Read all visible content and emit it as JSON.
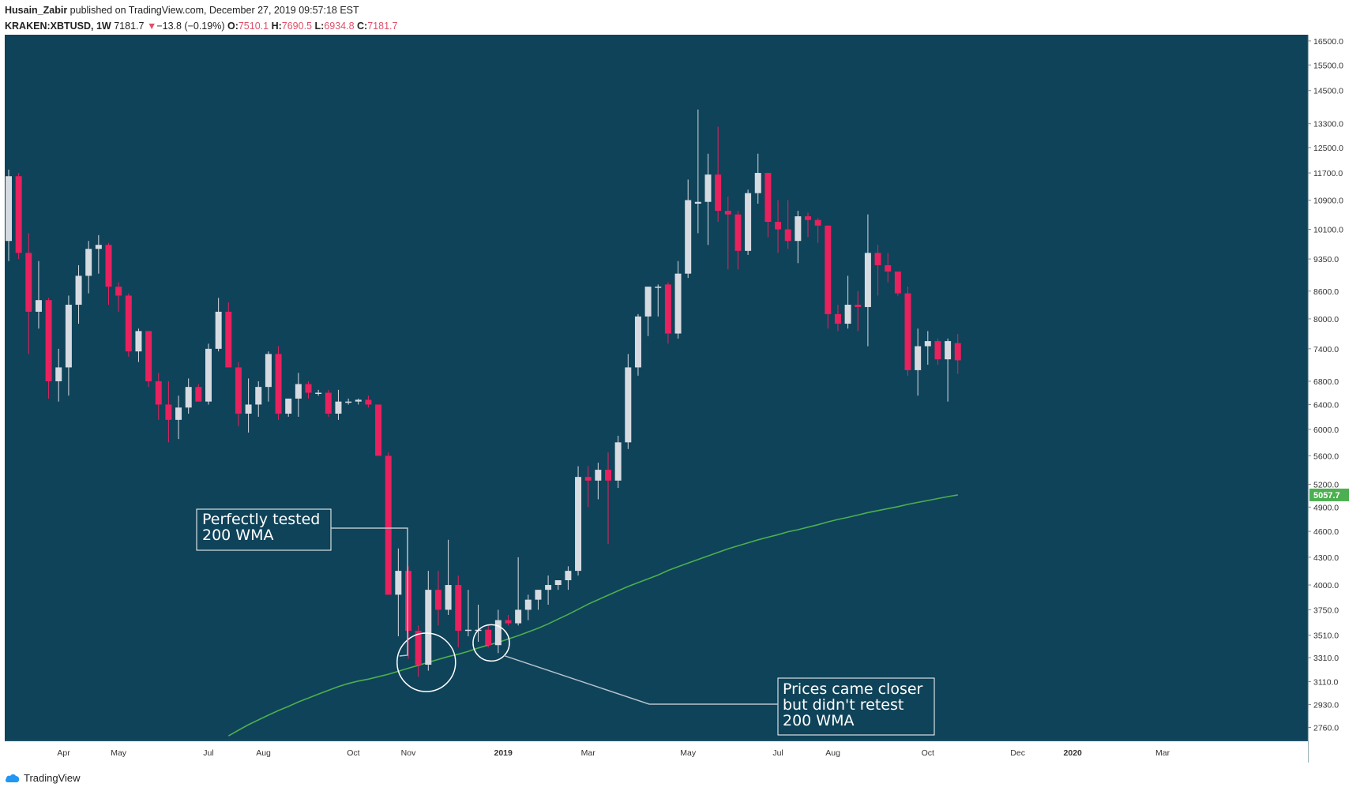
{
  "header": {
    "author": "Husain_Zabir",
    "published_text": "published on TradingView.com, December 27, 2019 09:57:18 EST",
    "symbol": "KRAKEN:XBTUSD, 1W",
    "last": "7181.7",
    "change_arrow": "▼",
    "change": "−13.8 (−0.19%)",
    "o_label": "O:",
    "o_value": "7510.1",
    "h_label": "H:",
    "h_value": "7690.5",
    "l_label": "L:",
    "l_value": "6934.8",
    "c_label": "C:",
    "c_value": "7181.7"
  },
  "footer": {
    "brand": "TradingView",
    "icon": "tradingview-cloud-icon"
  },
  "colors": {
    "background": "#0f4359",
    "bull": "#d6dbe2",
    "bear": "#e8215f",
    "wma": "#4caf50",
    "annotation": "#ffffff"
  },
  "chart_data": {
    "type": "candlestick",
    "log_scale": true,
    "ylim": [
      2690,
      16700
    ],
    "x_axis_labels": [
      "Apr",
      "May",
      "Jul",
      "Aug",
      "Oct",
      "Nov",
      "2019",
      "Mar",
      "May",
      "Jul",
      "Aug",
      "Oct",
      "Dec",
      "2020",
      "Mar"
    ],
    "y_axis_ticks": [
      "16500.0",
      "15500.0",
      "14500.0",
      "13300.0",
      "12500.0",
      "11700.0",
      "10900.0",
      "10100.0",
      "9350.0",
      "8600.0",
      "8000.0",
      "7400.0",
      "6800.0",
      "6400.0",
      "6000.0",
      "5600.0",
      "5200.0",
      "4900.0",
      "4600.0",
      "4300.0",
      "4000.0",
      "3750.0",
      "3510.0",
      "3310.0",
      "3110.0",
      "2930.0",
      "2760.0"
    ],
    "price_label": "5057.7",
    "candles": [
      {
        "o": 9800,
        "h": 11800,
        "l": 9300,
        "c": 11600
      },
      {
        "o": 11600,
        "h": 11700,
        "l": 9350,
        "c": 9500
      },
      {
        "o": 9500,
        "h": 10000,
        "l": 7300,
        "c": 8150
      },
      {
        "o": 8150,
        "h": 9300,
        "l": 7800,
        "c": 8400
      },
      {
        "o": 8400,
        "h": 8450,
        "l": 6500,
        "c": 6800
      },
      {
        "o": 6800,
        "h": 7400,
        "l": 6450,
        "c": 7050
      },
      {
        "o": 7050,
        "h": 8500,
        "l": 6550,
        "c": 8300
      },
      {
        "o": 8300,
        "h": 9200,
        "l": 7900,
        "c": 8950
      },
      {
        "o": 8950,
        "h": 9800,
        "l": 8550,
        "c": 9600
      },
      {
        "o": 9600,
        "h": 9950,
        "l": 9000,
        "c": 9700
      },
      {
        "o": 9700,
        "h": 9750,
        "l": 8300,
        "c": 8700
      },
      {
        "o": 8700,
        "h": 8800,
        "l": 8150,
        "c": 8500
      },
      {
        "o": 8500,
        "h": 8550,
        "l": 7250,
        "c": 7350
      },
      {
        "o": 7350,
        "h": 7800,
        "l": 7150,
        "c": 7750
      },
      {
        "o": 7750,
        "h": 7750,
        "l": 6700,
        "c": 6800
      },
      {
        "o": 6800,
        "h": 6950,
        "l": 6150,
        "c": 6400
      },
      {
        "o": 6400,
        "h": 6800,
        "l": 5800,
        "c": 6150
      },
      {
        "o": 6150,
        "h": 6550,
        "l": 5850,
        "c": 6350
      },
      {
        "o": 6350,
        "h": 6850,
        "l": 6250,
        "c": 6700
      },
      {
        "o": 6700,
        "h": 6750,
        "l": 6450,
        "c": 6450
      },
      {
        "o": 6450,
        "h": 7500,
        "l": 6400,
        "c": 7400
      },
      {
        "o": 7400,
        "h": 8450,
        "l": 7350,
        "c": 8150
      },
      {
        "o": 8150,
        "h": 8350,
        "l": 7050,
        "c": 7050
      },
      {
        "o": 7050,
        "h": 7150,
        "l": 6050,
        "c": 6250
      },
      {
        "o": 6250,
        "h": 6850,
        "l": 5950,
        "c": 6400
      },
      {
        "o": 6400,
        "h": 6800,
        "l": 6200,
        "c": 6700
      },
      {
        "o": 6700,
        "h": 7350,
        "l": 6450,
        "c": 7300
      },
      {
        "o": 7300,
        "h": 7450,
        "l": 6150,
        "c": 6250
      },
      {
        "o": 6250,
        "h": 6500,
        "l": 6200,
        "c": 6500
      },
      {
        "o": 6500,
        "h": 6950,
        "l": 6200,
        "c": 6750
      },
      {
        "o": 6750,
        "h": 6800,
        "l": 6500,
        "c": 6600
      },
      {
        "o": 6600,
        "h": 6650,
        "l": 6550,
        "c": 6600
      },
      {
        "o": 6600,
        "h": 6650,
        "l": 6200,
        "c": 6250
      },
      {
        "o": 6250,
        "h": 6650,
        "l": 6150,
        "c": 6450
      },
      {
        "o": 6450,
        "h": 6500,
        "l": 6400,
        "c": 6450
      },
      {
        "o": 6450,
        "h": 6500,
        "l": 6400,
        "c": 6480
      },
      {
        "o": 6480,
        "h": 6550,
        "l": 6350,
        "c": 6400
      },
      {
        "o": 6400,
        "h": 6400,
        "l": 5600,
        "c": 5600
      },
      {
        "o": 5600,
        "h": 5650,
        "l": 3900,
        "c": 3900
      },
      {
        "o": 3900,
        "h": 4400,
        "l": 3500,
        "c": 4150
      },
      {
        "o": 4150,
        "h": 4200,
        "l": 3300,
        "c": 3550
      },
      {
        "o": 3550,
        "h": 3600,
        "l": 3150,
        "c": 3250
      },
      {
        "o": 3250,
        "h": 4150,
        "l": 3200,
        "c": 3950
      },
      {
        "o": 3950,
        "h": 4150,
        "l": 3600,
        "c": 3750
      },
      {
        "o": 3750,
        "h": 4500,
        "l": 3700,
        "c": 4000
      },
      {
        "o": 4000,
        "h": 4100,
        "l": 3400,
        "c": 3550
      },
      {
        "o": 3550,
        "h": 3950,
        "l": 3500,
        "c": 3560
      },
      {
        "o": 3560,
        "h": 3800,
        "l": 3450,
        "c": 3560
      },
      {
        "o": 3560,
        "h": 3600,
        "l": 3400,
        "c": 3420
      },
      {
        "o": 3420,
        "h": 3750,
        "l": 3350,
        "c": 3650
      },
      {
        "o": 3650,
        "h": 3700,
        "l": 3600,
        "c": 3620
      },
      {
        "o": 3620,
        "h": 4300,
        "l": 3600,
        "c": 3750
      },
      {
        "o": 3750,
        "h": 3900,
        "l": 3650,
        "c": 3850
      },
      {
        "o": 3850,
        "h": 3950,
        "l": 3750,
        "c": 3950
      },
      {
        "o": 3950,
        "h": 4100,
        "l": 3800,
        "c": 4000
      },
      {
        "o": 4000,
        "h": 4050,
        "l": 3950,
        "c": 4050
      },
      {
        "o": 4050,
        "h": 4200,
        "l": 3950,
        "c": 4150
      },
      {
        "o": 4150,
        "h": 5450,
        "l": 4100,
        "c": 5300
      },
      {
        "o": 5300,
        "h": 5450,
        "l": 4900,
        "c": 5250
      },
      {
        "o": 5250,
        "h": 5500,
        "l": 5000,
        "c": 5400
      },
      {
        "o": 5400,
        "h": 5650,
        "l": 4450,
        "c": 5250
      },
      {
        "o": 5250,
        "h": 5900,
        "l": 5150,
        "c": 5800
      },
      {
        "o": 5800,
        "h": 7300,
        "l": 5700,
        "c": 7050
      },
      {
        "o": 7050,
        "h": 8100,
        "l": 6900,
        "c": 8050
      },
      {
        "o": 8050,
        "h": 8650,
        "l": 7650,
        "c": 8700
      },
      {
        "o": 8700,
        "h": 8750,
        "l": 8050,
        "c": 8700
      },
      {
        "o": 8750,
        "h": 8800,
        "l": 7500,
        "c": 7700
      },
      {
        "o": 7700,
        "h": 9300,
        "l": 7600,
        "c": 9000
      },
      {
        "o": 9000,
        "h": 11500,
        "l": 8900,
        "c": 10900
      },
      {
        "o": 10800,
        "h": 13800,
        "l": 10000,
        "c": 10850
      },
      {
        "o": 10850,
        "h": 12300,
        "l": 9700,
        "c": 11650
      },
      {
        "o": 11650,
        "h": 13200,
        "l": 10300,
        "c": 10600
      },
      {
        "o": 10600,
        "h": 11000,
        "l": 9100,
        "c": 10500
      },
      {
        "o": 10500,
        "h": 10600,
        "l": 9100,
        "c": 9550
      },
      {
        "o": 9550,
        "h": 11200,
        "l": 9450,
        "c": 11100
      },
      {
        "o": 11100,
        "h": 12300,
        "l": 10800,
        "c": 11700
      },
      {
        "o": 11700,
        "h": 11700,
        "l": 9900,
        "c": 10300
      },
      {
        "o": 10300,
        "h": 10900,
        "l": 9500,
        "c": 10100
      },
      {
        "o": 10100,
        "h": 10900,
        "l": 9600,
        "c": 9800
      },
      {
        "o": 9800,
        "h": 10600,
        "l": 9250,
        "c": 10450
      },
      {
        "o": 10450,
        "h": 10550,
        "l": 9900,
        "c": 10350
      },
      {
        "o": 10350,
        "h": 10400,
        "l": 9750,
        "c": 10200
      },
      {
        "o": 10200,
        "h": 10200,
        "l": 7800,
        "c": 8100
      },
      {
        "o": 8100,
        "h": 8300,
        "l": 7750,
        "c": 7900
      },
      {
        "o": 7900,
        "h": 8950,
        "l": 7800,
        "c": 8300
      },
      {
        "o": 8300,
        "h": 8600,
        "l": 7750,
        "c": 8250
      },
      {
        "o": 8250,
        "h": 10500,
        "l": 7450,
        "c": 9500
      },
      {
        "o": 9500,
        "h": 9700,
        "l": 8500,
        "c": 9200
      },
      {
        "o": 9200,
        "h": 9500,
        "l": 8800,
        "c": 9050
      },
      {
        "o": 9050,
        "h": 9050,
        "l": 8500,
        "c": 8550
      },
      {
        "o": 8550,
        "h": 8700,
        "l": 6900,
        "c": 7000
      },
      {
        "o": 7000,
        "h": 7800,
        "l": 6550,
        "c": 7450
      },
      {
        "o": 7450,
        "h": 7750,
        "l": 7100,
        "c": 7550
      },
      {
        "o": 7550,
        "h": 7600,
        "l": 7100,
        "c": 7200
      },
      {
        "o": 7200,
        "h": 7600,
        "l": 6450,
        "c": 7550
      },
      {
        "o": 7510.1,
        "h": 7690.5,
        "l": 6934.8,
        "c": 7181.7
      }
    ],
    "wma_200": [
      2700,
      2740,
      2780,
      2815,
      2850,
      2885,
      2915,
      2950,
      2980,
      3010,
      3040,
      3070,
      3095,
      3115,
      3130,
      3150,
      3170,
      3195,
      3220,
      3245,
      3270,
      3295,
      3320,
      3340,
      3365,
      3395,
      3420,
      3445,
      3475,
      3505,
      3540,
      3575,
      3615,
      3660,
      3705,
      3755,
      3805,
      3850,
      3895,
      3940,
      3985,
      4025,
      4065,
      4105,
      4155,
      4195,
      4235,
      4275,
      4315,
      4355,
      4395,
      4430,
      4465,
      4500,
      4530,
      4560,
      4595,
      4620,
      4650,
      4680,
      4715,
      4745,
      4770,
      4800,
      4830,
      4855,
      4880,
      4905,
      4935,
      4960,
      4985,
      5010,
      5035,
      5057.7
    ]
  },
  "annotations": [
    {
      "text": [
        "Perfectly tested",
        "200 WMA"
      ]
    },
    {
      "text": [
        "Prices came closer",
        "but didn't retest",
        "200 WMA"
      ]
    }
  ]
}
